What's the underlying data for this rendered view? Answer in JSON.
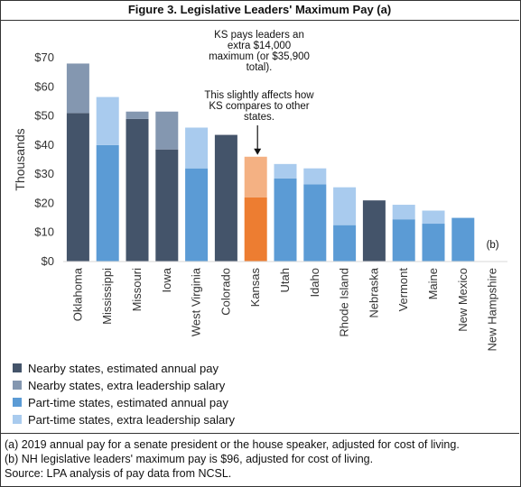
{
  "title": "Figure 3. Legislative Leaders' Maximum Pay (a)",
  "chart_data": {
    "type": "bar",
    "stacked": true,
    "title": "Figure 3. Legislative Leaders' Maximum Pay (a)",
    "ylabel": "Thousands",
    "xlabel": "",
    "ylim": [
      0,
      70
    ],
    "yticks": [
      0,
      10,
      20,
      30,
      40,
      50,
      60,
      70
    ],
    "ytick_labels": [
      "$0",
      "$10",
      "$20",
      "$30",
      "$40",
      "$50",
      "$60",
      "$70"
    ],
    "categories": [
      "Oklahoma",
      "Mississippi",
      "Missouri",
      "Iowa",
      "West Virginia",
      "Colorado",
      "Kansas",
      "Utah",
      "Idaho",
      "Rhode Island",
      "Nebraska",
      "Vermont",
      "Maine",
      "New Mexico",
      "New Hampshire"
    ],
    "base": [
      51,
      40,
      49,
      38.5,
      32,
      43.5,
      22,
      28.5,
      26.5,
      12.5,
      21,
      14.5,
      13,
      15,
      0.1
    ],
    "extra": [
      17,
      16.5,
      2.5,
      13,
      14,
      0,
      14,
      5,
      5.5,
      13,
      0,
      5,
      4.5,
      0,
      0
    ],
    "group": [
      "nearby",
      "parttime",
      "nearby",
      "nearby",
      "parttime",
      "nearby",
      "kansas",
      "parttime",
      "parttime",
      "parttime",
      "nearby",
      "parttime",
      "parttime",
      "parttime",
      "parttime"
    ],
    "legend": [
      {
        "label": "Nearby states, estimated annual pay",
        "color": "#44546a"
      },
      {
        "label": "Nearby states, extra leadership salary",
        "color": "#8497b0"
      },
      {
        "label": "Part-time states, estimated annual pay",
        "color": "#5b9bd5"
      },
      {
        "label": "Part-time states, extra leadership salary",
        "color": "#a9cbee"
      }
    ],
    "colors": {
      "nearby_base": "#44546a",
      "nearby_extra": "#8497b0",
      "parttime_base": "#5b9bd5",
      "parttime_extra": "#a9cbee",
      "kansas_base": "#ed7d31",
      "kansas_extra": "#f4b183"
    },
    "annotations": {
      "ks_note": [
        "KS pays leaders an",
        "extra $14,000",
        "maximum (or $35,900",
        "total)."
      ],
      "ks_note2": [
        "This slightly affects how",
        "KS compares to other",
        "states."
      ],
      "nh_note": "(b)"
    }
  },
  "notes": [
    "(a) 2019 annual pay for a senate president or the house speaker, adjusted for cost of living.",
    "(b) NH legislative leaders' maximum pay is $96, adjusted for cost of living.",
    "Source: LPA analysis of pay data from NCSL."
  ]
}
